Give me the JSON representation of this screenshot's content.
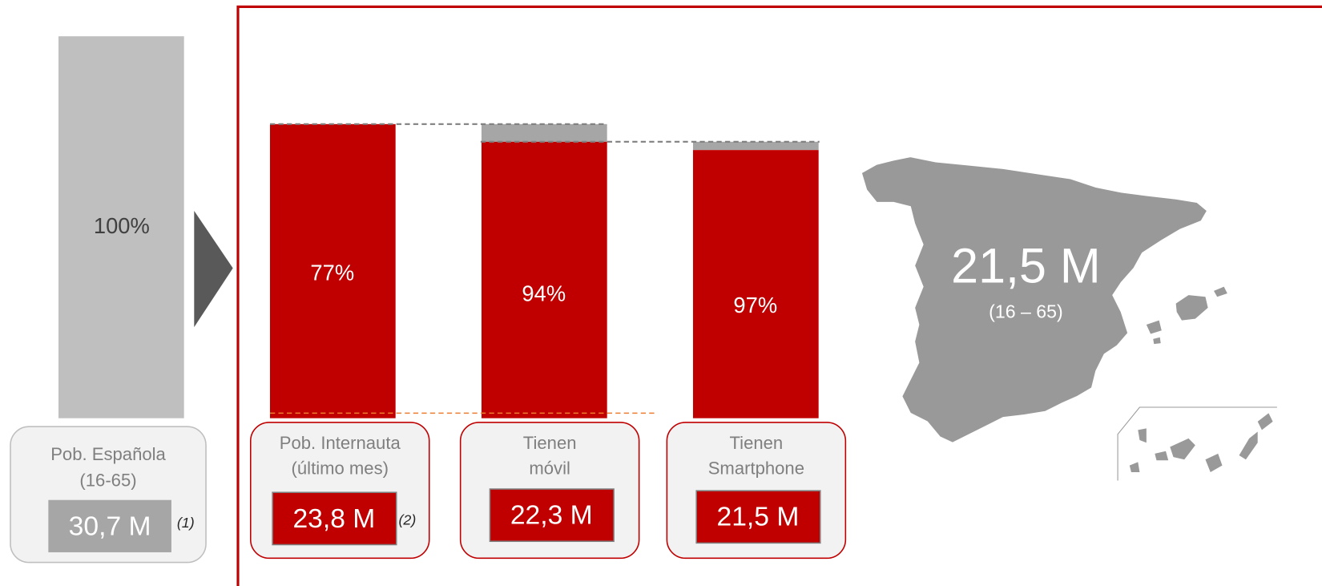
{
  "population": {
    "percent": 100,
    "percent_label": "100%",
    "label_lines": [
      "Pob. Española",
      "(16-65)"
    ],
    "total": "30,7 M",
    "note": "(1)"
  },
  "steps": [
    {
      "percent": 77,
      "percent_label": "77%",
      "label_lines": [
        "Pob. Internauta",
        "(último mes)"
      ],
      "total": "23,8 M",
      "note": "(2)"
    },
    {
      "percent": 94,
      "percent_label": "94%",
      "label_lines": [
        "Tienen",
        "móvil"
      ],
      "total": "22,3 M"
    },
    {
      "percent": 97,
      "percent_label": "97%",
      "label_lines": [
        "Tienen",
        "Smartphone"
      ],
      "total": "21,5 M"
    }
  ],
  "map": {
    "value": "21,5 M",
    "range": "(16 – 65)"
  }
}
